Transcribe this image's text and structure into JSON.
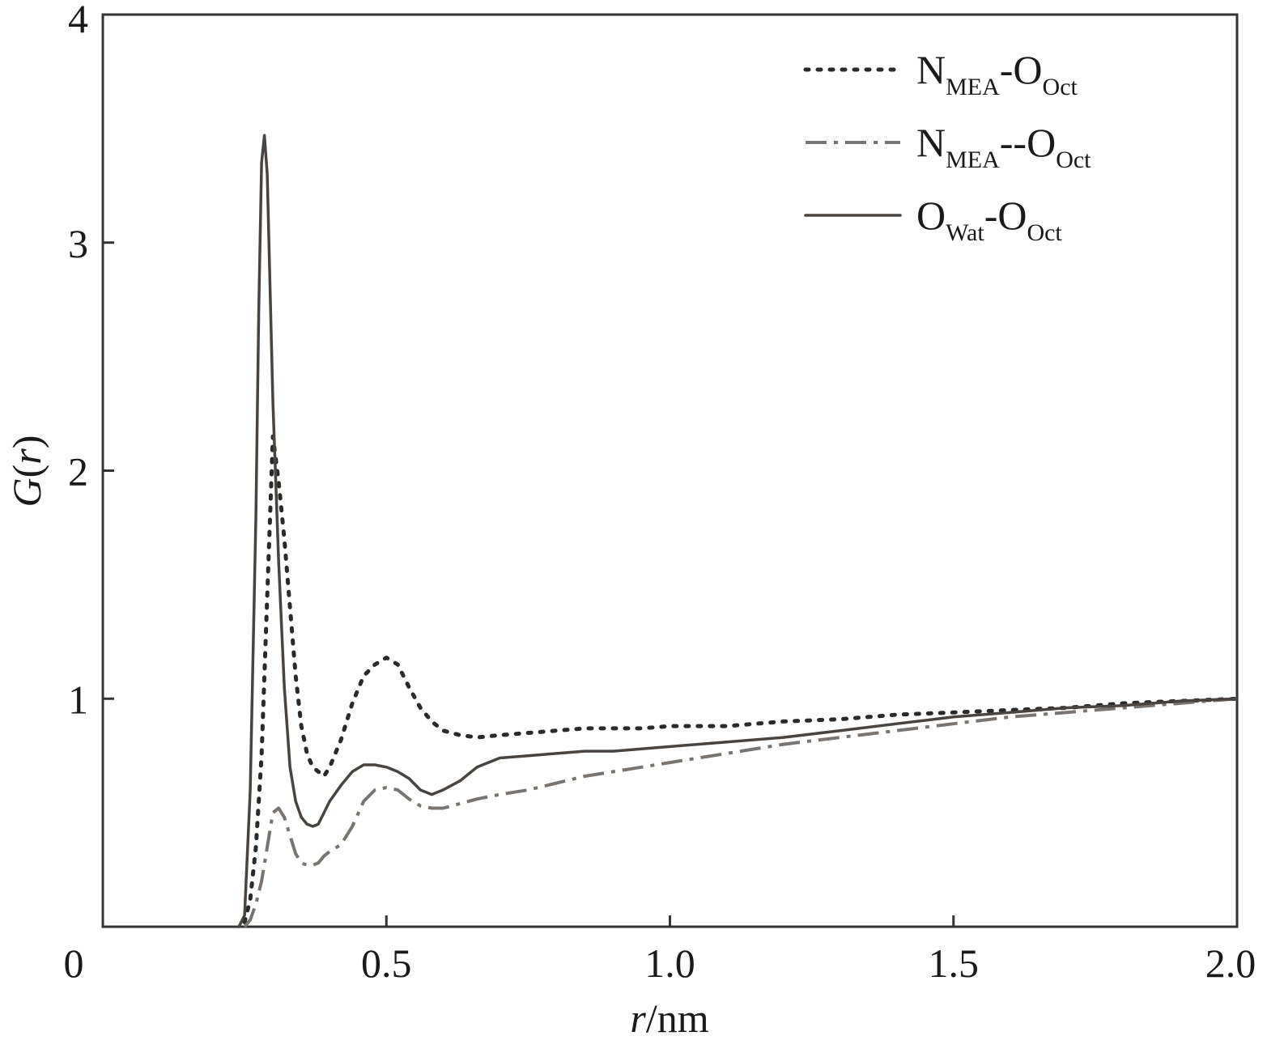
{
  "chart_data": {
    "type": "line",
    "xlabel_italic": "r",
    "xlabel_rest": "/nm",
    "ylabel_italic_g": "G",
    "ylabel_open": "(",
    "ylabel_italic_r": "r",
    "ylabel_close": ")",
    "xlim": [
      0,
      2.0
    ],
    "ylim": [
      0,
      4
    ],
    "x_ticks": [
      {
        "value": 0,
        "label": "0"
      },
      {
        "value": 0.5,
        "label": "0.5"
      },
      {
        "value": 1.0,
        "label": "1.0"
      },
      {
        "value": 1.5,
        "label": "1.5"
      },
      {
        "value": 2.0,
        "label": "2.0"
      }
    ],
    "y_ticks": [
      {
        "value": 1,
        "label": "1"
      },
      {
        "value": 2,
        "label": "2"
      },
      {
        "value": 3,
        "label": "3"
      },
      {
        "value": 4,
        "label": "4"
      }
    ],
    "legend_position": "top-right",
    "series": [
      {
        "legend_parts": [
          [
            "N",
            "main"
          ],
          [
            "MEA",
            "sub"
          ],
          [
            "-O",
            "main"
          ],
          [
            "Oct",
            "sub"
          ]
        ],
        "style": "dotted",
        "color": "#2a2a2a",
        "x": [
          0.25,
          0.26,
          0.27,
          0.28,
          0.29,
          0.3,
          0.31,
          0.32,
          0.33,
          0.34,
          0.35,
          0.36,
          0.37,
          0.38,
          0.39,
          0.4,
          0.42,
          0.44,
          0.46,
          0.48,
          0.5,
          0.52,
          0.54,
          0.56,
          0.58,
          0.6,
          0.63,
          0.66,
          0.7,
          0.75,
          0.8,
          0.85,
          0.9,
          0.95,
          1.0,
          1.1,
          1.2,
          1.3,
          1.4,
          1.5,
          1.6,
          1.7,
          1.8,
          1.9,
          2.0
        ],
        "y": [
          0.02,
          0.12,
          0.35,
          0.75,
          1.45,
          2.15,
          1.95,
          1.7,
          1.4,
          1.1,
          0.88,
          0.76,
          0.7,
          0.68,
          0.66,
          0.7,
          0.82,
          0.98,
          1.1,
          1.15,
          1.18,
          1.15,
          1.05,
          0.96,
          0.9,
          0.86,
          0.84,
          0.83,
          0.84,
          0.85,
          0.86,
          0.87,
          0.87,
          0.87,
          0.88,
          0.88,
          0.9,
          0.91,
          0.93,
          0.94,
          0.95,
          0.96,
          0.98,
          0.99,
          1.0
        ]
      },
      {
        "legend_parts": [
          [
            "N",
            "main"
          ],
          [
            "MEA",
            "sub"
          ],
          [
            "--O",
            "main"
          ],
          [
            "Oct",
            "sub"
          ]
        ],
        "style": "dashdot",
        "color": "#7a7470",
        "x": [
          0.25,
          0.26,
          0.27,
          0.28,
          0.29,
          0.3,
          0.31,
          0.32,
          0.33,
          0.34,
          0.35,
          0.36,
          0.37,
          0.38,
          0.39,
          0.4,
          0.42,
          0.44,
          0.46,
          0.48,
          0.5,
          0.52,
          0.54,
          0.56,
          0.58,
          0.6,
          0.63,
          0.66,
          0.7,
          0.75,
          0.8,
          0.85,
          0.9,
          0.95,
          1.0,
          1.1,
          1.2,
          1.3,
          1.4,
          1.5,
          1.6,
          1.7,
          1.8,
          1.9,
          2.0
        ],
        "y": [
          0.0,
          0.03,
          0.1,
          0.2,
          0.35,
          0.5,
          0.52,
          0.48,
          0.4,
          0.32,
          0.28,
          0.27,
          0.27,
          0.28,
          0.31,
          0.33,
          0.36,
          0.44,
          0.55,
          0.6,
          0.61,
          0.6,
          0.56,
          0.53,
          0.52,
          0.52,
          0.54,
          0.56,
          0.58,
          0.6,
          0.63,
          0.66,
          0.68,
          0.7,
          0.72,
          0.76,
          0.8,
          0.83,
          0.86,
          0.89,
          0.92,
          0.94,
          0.96,
          0.98,
          1.0
        ]
      },
      {
        "legend_parts": [
          [
            "O",
            "main"
          ],
          [
            "Wat",
            "sub"
          ],
          [
            "-O",
            "main"
          ],
          [
            "Oct",
            "sub"
          ]
        ],
        "style": "solid",
        "color": "#4a4440",
        "x": [
          0.24,
          0.25,
          0.26,
          0.27,
          0.275,
          0.28,
          0.285,
          0.29,
          0.295,
          0.3,
          0.31,
          0.32,
          0.33,
          0.34,
          0.35,
          0.36,
          0.37,
          0.38,
          0.39,
          0.4,
          0.42,
          0.44,
          0.46,
          0.48,
          0.5,
          0.52,
          0.54,
          0.56,
          0.58,
          0.6,
          0.63,
          0.66,
          0.7,
          0.75,
          0.8,
          0.85,
          0.9,
          0.95,
          1.0,
          1.1,
          1.2,
          1.3,
          1.4,
          1.5,
          1.6,
          1.7,
          1.8,
          1.9,
          2.0
        ],
        "y": [
          0.0,
          0.05,
          0.6,
          1.8,
          2.7,
          3.35,
          3.47,
          3.3,
          2.8,
          2.3,
          1.6,
          1.05,
          0.7,
          0.55,
          0.48,
          0.45,
          0.44,
          0.45,
          0.5,
          0.55,
          0.62,
          0.68,
          0.71,
          0.71,
          0.7,
          0.68,
          0.65,
          0.6,
          0.58,
          0.6,
          0.64,
          0.7,
          0.74,
          0.75,
          0.76,
          0.77,
          0.77,
          0.78,
          0.79,
          0.81,
          0.83,
          0.86,
          0.89,
          0.92,
          0.94,
          0.96,
          0.97,
          0.99,
          1.0
        ]
      }
    ]
  }
}
